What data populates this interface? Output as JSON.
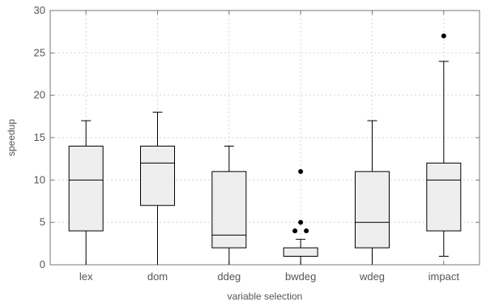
{
  "chart_data": {
    "type": "box",
    "title": "",
    "xlabel": "variable selection",
    "ylabel": "speedup",
    "ylim": [
      0,
      30
    ],
    "yticks": [
      "0",
      "5",
      "10",
      "15",
      "20",
      "25",
      "30"
    ],
    "grid": true,
    "legend": "none",
    "categories": [
      "lex",
      "dom",
      "ddeg",
      "bwdeg",
      "wdeg",
      "impact"
    ],
    "boxes": [
      {
        "category": "lex",
        "min": 0,
        "q1": 4,
        "median": 10,
        "q3": 14,
        "max": 17,
        "outliers": []
      },
      {
        "category": "dom",
        "min": 0,
        "q1": 7,
        "median": 12,
        "q3": 14,
        "max": 18,
        "outliers": []
      },
      {
        "category": "ddeg",
        "min": 0,
        "q1": 2,
        "median": 3.5,
        "q3": 11,
        "max": 14,
        "outliers": []
      },
      {
        "category": "bwdeg",
        "min": 0,
        "q1": 1,
        "median": 1,
        "q3": 2,
        "max": 3,
        "outliers": [
          4,
          4,
          5,
          11
        ]
      },
      {
        "category": "wdeg",
        "min": 0,
        "q1": 2,
        "median": 5,
        "q3": 11,
        "max": 17,
        "outliers": []
      },
      {
        "category": "impact",
        "min": 1,
        "q1": 4,
        "median": 10,
        "q3": 12,
        "max": 24,
        "outliers": [
          27
        ]
      }
    ],
    "colors": {
      "box_fill": "#eeeeee",
      "box_stroke": "#000000",
      "grid": "#d8d8d8",
      "frame": "#777777",
      "text": "#555555"
    }
  }
}
